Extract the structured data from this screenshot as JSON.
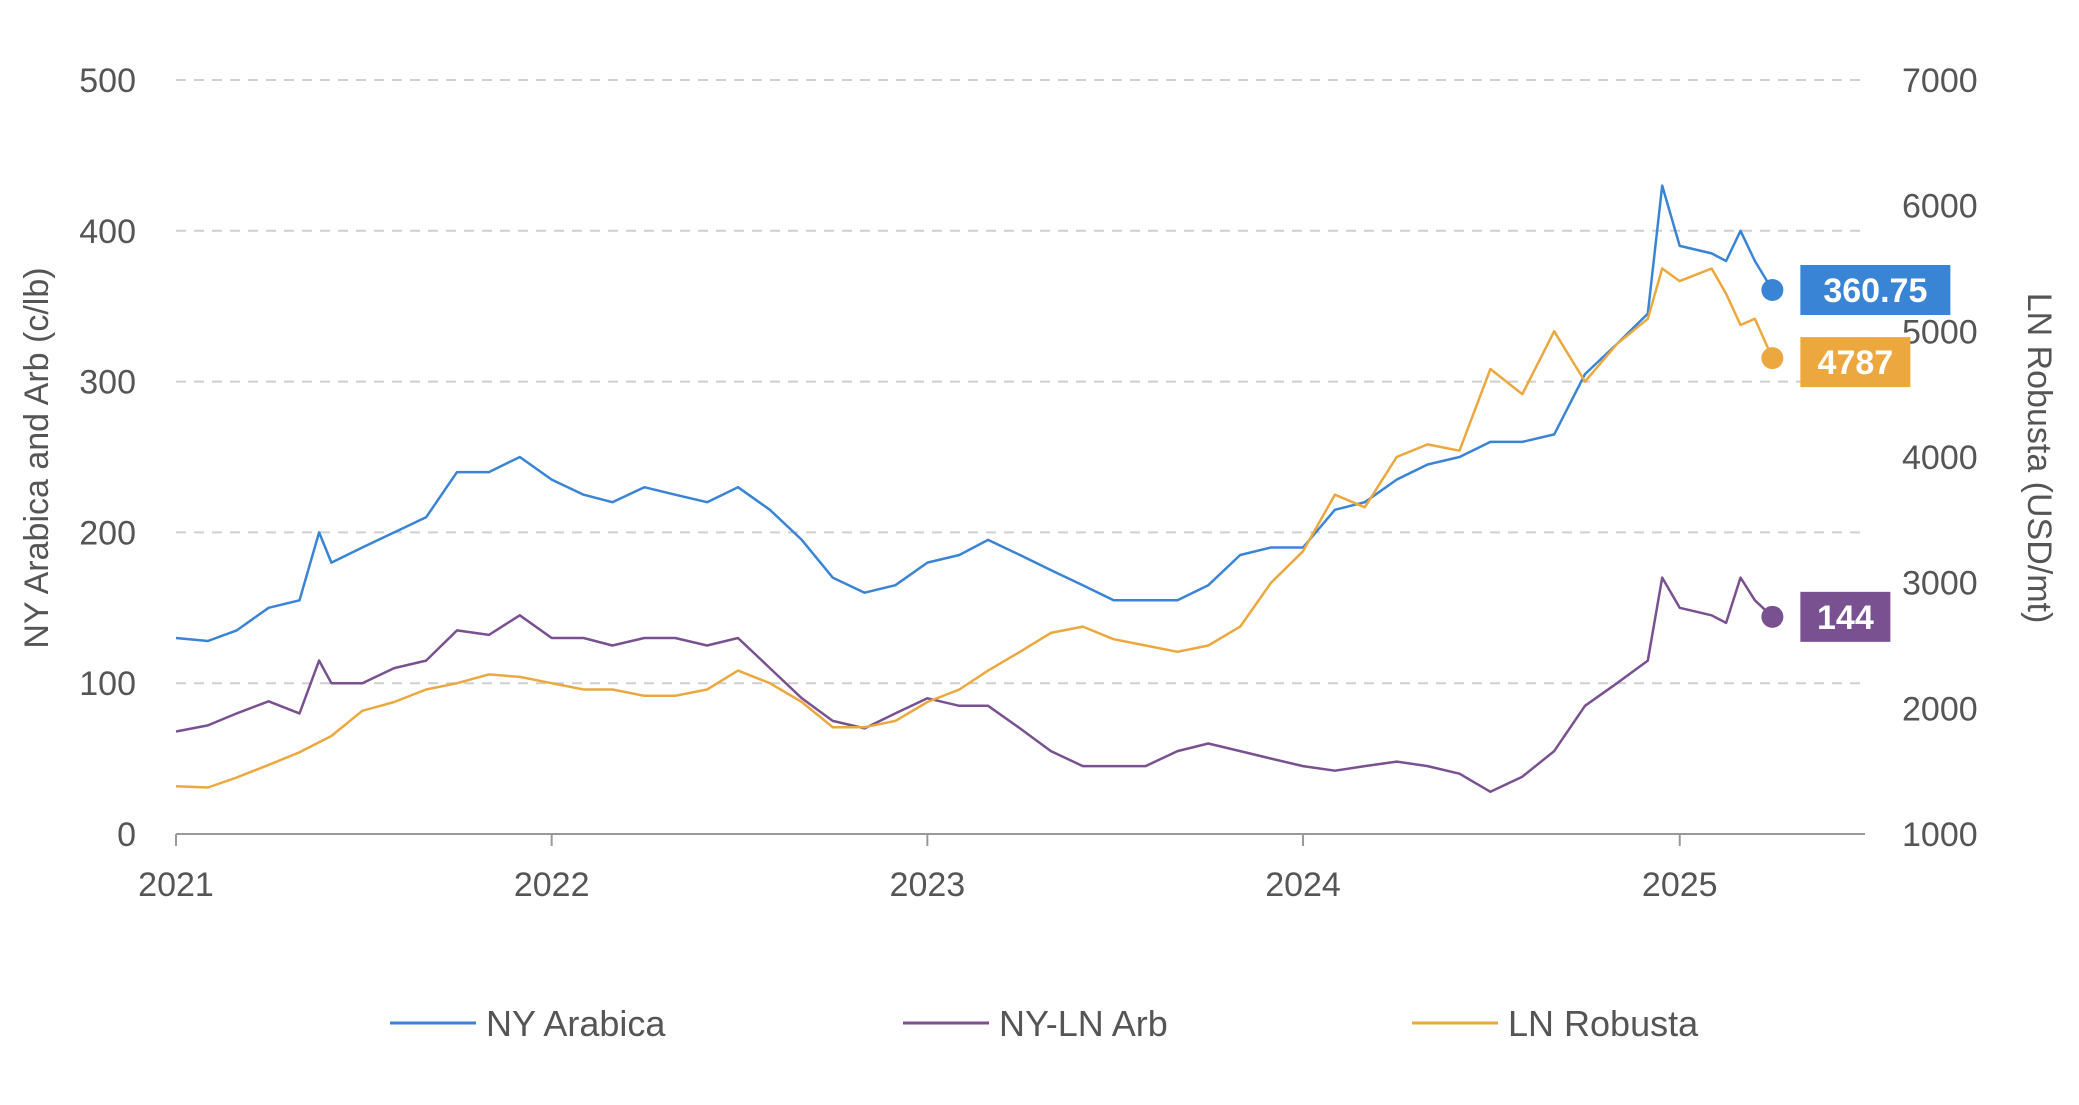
{
  "chart_data": {
    "type": "line",
    "x_axis": {
      "type": "date",
      "range": [
        "2021-01-01",
        "2025-06-30"
      ],
      "tick_labels": [
        "2021",
        "2022",
        "2023",
        "2024",
        "2025"
      ]
    },
    "y_axis_left": {
      "label": "NY Arabica and Arb (c/lb)",
      "range": [
        0,
        500
      ],
      "tick_labels": [
        "0",
        "100",
        "200",
        "300",
        "400",
        "500"
      ]
    },
    "y_axis_right": {
      "label": "LN Robusta (USD/mt)",
      "range": [
        1000,
        7000
      ],
      "tick_labels": [
        "1000",
        "2000",
        "3000",
        "4000",
        "5000",
        "6000",
        "7000"
      ]
    },
    "grid": "horizontal dashed",
    "legend_position": "bottom",
    "series": [
      {
        "name": "NY Arabica",
        "axis": "left",
        "color": "#3a84d6",
        "end_label": "360.75",
        "points": [
          [
            "2021-01-01",
            130
          ],
          [
            "2021-02-01",
            128
          ],
          [
            "2021-03-01",
            135
          ],
          [
            "2021-04-01",
            150
          ],
          [
            "2021-05-01",
            155
          ],
          [
            "2021-05-20",
            200
          ],
          [
            "2021-06-01",
            180
          ],
          [
            "2021-07-01",
            190
          ],
          [
            "2021-08-01",
            200
          ],
          [
            "2021-09-01",
            210
          ],
          [
            "2021-10-01",
            240
          ],
          [
            "2021-11-01",
            240
          ],
          [
            "2021-12-01",
            250
          ],
          [
            "2022-01-01",
            235
          ],
          [
            "2022-02-01",
            225
          ],
          [
            "2022-03-01",
            220
          ],
          [
            "2022-04-01",
            230
          ],
          [
            "2022-05-01",
            225
          ],
          [
            "2022-06-01",
            220
          ],
          [
            "2022-07-01",
            230
          ],
          [
            "2022-08-01",
            215
          ],
          [
            "2022-09-01",
            195
          ],
          [
            "2022-10-01",
            170
          ],
          [
            "2022-11-01",
            160
          ],
          [
            "2022-12-01",
            165
          ],
          [
            "2023-01-01",
            180
          ],
          [
            "2023-02-01",
            185
          ],
          [
            "2023-03-01",
            195
          ],
          [
            "2023-04-01",
            185
          ],
          [
            "2023-05-01",
            175
          ],
          [
            "2023-06-01",
            165
          ],
          [
            "2023-07-01",
            155
          ],
          [
            "2023-08-01",
            155
          ],
          [
            "2023-09-01",
            155
          ],
          [
            "2023-10-01",
            165
          ],
          [
            "2023-11-01",
            185
          ],
          [
            "2023-12-01",
            190
          ],
          [
            "2024-01-01",
            190
          ],
          [
            "2024-02-01",
            215
          ],
          [
            "2024-03-01",
            220
          ],
          [
            "2024-04-01",
            235
          ],
          [
            "2024-05-01",
            245
          ],
          [
            "2024-06-01",
            250
          ],
          [
            "2024-07-01",
            260
          ],
          [
            "2024-08-01",
            260
          ],
          [
            "2024-09-01",
            265
          ],
          [
            "2024-10-01",
            305
          ],
          [
            "2024-11-01",
            325
          ],
          [
            "2024-12-01",
            345
          ],
          [
            "2024-12-15",
            430
          ],
          [
            "2025-01-01",
            390
          ],
          [
            "2025-02-01",
            385
          ],
          [
            "2025-02-15",
            380
          ],
          [
            "2025-03-01",
            400
          ],
          [
            "2025-03-15",
            380
          ],
          [
            "2025-04-01",
            360.75
          ]
        ]
      },
      {
        "name": "NY-LN Arb",
        "axis": "left",
        "color": "#7a5190",
        "end_label": "144",
        "points": [
          [
            "2021-01-01",
            68
          ],
          [
            "2021-02-01",
            72
          ],
          [
            "2021-03-01",
            80
          ],
          [
            "2021-04-01",
            88
          ],
          [
            "2021-05-01",
            80
          ],
          [
            "2021-05-20",
            115
          ],
          [
            "2021-06-01",
            100
          ],
          [
            "2021-07-01",
            100
          ],
          [
            "2021-08-01",
            110
          ],
          [
            "2021-09-01",
            115
          ],
          [
            "2021-10-01",
            135
          ],
          [
            "2021-11-01",
            132
          ],
          [
            "2021-12-01",
            145
          ],
          [
            "2022-01-01",
            130
          ],
          [
            "2022-02-01",
            130
          ],
          [
            "2022-03-01",
            125
          ],
          [
            "2022-04-01",
            130
          ],
          [
            "2022-05-01",
            130
          ],
          [
            "2022-06-01",
            125
          ],
          [
            "2022-07-01",
            130
          ],
          [
            "2022-08-01",
            110
          ],
          [
            "2022-09-01",
            90
          ],
          [
            "2022-10-01",
            75
          ],
          [
            "2022-11-01",
            70
          ],
          [
            "2022-12-01",
            80
          ],
          [
            "2023-01-01",
            90
          ],
          [
            "2023-02-01",
            85
          ],
          [
            "2023-03-01",
            85
          ],
          [
            "2023-04-01",
            70
          ],
          [
            "2023-05-01",
            55
          ],
          [
            "2023-06-01",
            45
          ],
          [
            "2023-07-01",
            45
          ],
          [
            "2023-08-01",
            45
          ],
          [
            "2023-09-01",
            55
          ],
          [
            "2023-10-01",
            60
          ],
          [
            "2023-11-01",
            55
          ],
          [
            "2023-12-01",
            50
          ],
          [
            "2024-01-01",
            45
          ],
          [
            "2024-02-01",
            42
          ],
          [
            "2024-03-01",
            45
          ],
          [
            "2024-04-01",
            48
          ],
          [
            "2024-05-01",
            45
          ],
          [
            "2024-06-01",
            40
          ],
          [
            "2024-07-01",
            28
          ],
          [
            "2024-08-01",
            38
          ],
          [
            "2024-09-01",
            55
          ],
          [
            "2024-10-01",
            85
          ],
          [
            "2024-11-01",
            100
          ],
          [
            "2024-12-01",
            115
          ],
          [
            "2024-12-15",
            170
          ],
          [
            "2025-01-01",
            150
          ],
          [
            "2025-02-01",
            145
          ],
          [
            "2025-02-15",
            140
          ],
          [
            "2025-03-01",
            170
          ],
          [
            "2025-03-15",
            155
          ],
          [
            "2025-04-01",
            144
          ]
        ]
      },
      {
        "name": "LN Robusta",
        "axis": "right",
        "color": "#eca83e",
        "end_label": "4787",
        "points": [
          [
            "2021-01-01",
            1380
          ],
          [
            "2021-02-01",
            1370
          ],
          [
            "2021-03-01",
            1450
          ],
          [
            "2021-04-01",
            1550
          ],
          [
            "2021-05-01",
            1650
          ],
          [
            "2021-06-01",
            1780
          ],
          [
            "2021-07-01",
            1980
          ],
          [
            "2021-08-01",
            2050
          ],
          [
            "2021-09-01",
            2150
          ],
          [
            "2021-10-01",
            2200
          ],
          [
            "2021-11-01",
            2270
          ],
          [
            "2021-12-01",
            2250
          ],
          [
            "2022-01-01",
            2200
          ],
          [
            "2022-02-01",
            2150
          ],
          [
            "2022-03-01",
            2150
          ],
          [
            "2022-04-01",
            2100
          ],
          [
            "2022-05-01",
            2100
          ],
          [
            "2022-06-01",
            2150
          ],
          [
            "2022-07-01",
            2300
          ],
          [
            "2022-08-01",
            2200
          ],
          [
            "2022-09-01",
            2050
          ],
          [
            "2022-10-01",
            1850
          ],
          [
            "2022-11-01",
            1850
          ],
          [
            "2022-12-01",
            1900
          ],
          [
            "2023-01-01",
            2050
          ],
          [
            "2023-02-01",
            2150
          ],
          [
            "2023-03-01",
            2300
          ],
          [
            "2023-04-01",
            2450
          ],
          [
            "2023-05-01",
            2600
          ],
          [
            "2023-06-01",
            2650
          ],
          [
            "2023-07-01",
            2550
          ],
          [
            "2023-08-01",
            2500
          ],
          [
            "2023-09-01",
            2450
          ],
          [
            "2023-10-01",
            2500
          ],
          [
            "2023-11-01",
            2650
          ],
          [
            "2023-12-01",
            3000
          ],
          [
            "2024-01-01",
            3250
          ],
          [
            "2024-02-01",
            3700
          ],
          [
            "2024-03-01",
            3600
          ],
          [
            "2024-04-01",
            4000
          ],
          [
            "2024-05-01",
            4100
          ],
          [
            "2024-06-01",
            4050
          ],
          [
            "2024-07-01",
            4700
          ],
          [
            "2024-08-01",
            4500
          ],
          [
            "2024-09-01",
            5000
          ],
          [
            "2024-10-01",
            4600
          ],
          [
            "2024-11-01",
            4900
          ],
          [
            "2024-12-01",
            5100
          ],
          [
            "2024-12-15",
            5500
          ],
          [
            "2025-01-01",
            5400
          ],
          [
            "2025-02-01",
            5500
          ],
          [
            "2025-02-15",
            5300
          ],
          [
            "2025-03-01",
            5050
          ],
          [
            "2025-03-15",
            5100
          ],
          [
            "2025-04-01",
            4787
          ]
        ]
      }
    ]
  }
}
